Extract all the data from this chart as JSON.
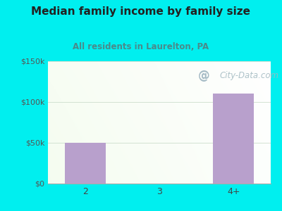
{
  "title": "Median family income by family size",
  "subtitle": "All residents in Laurelton, PA",
  "categories": [
    "2",
    "3",
    "4+"
  ],
  "values": [
    50000,
    0,
    110000
  ],
  "bar_color": "#b8a0cc",
  "ylim": [
    0,
    150000
  ],
  "yticks": [
    0,
    50000,
    100000,
    150000
  ],
  "ytick_labels": [
    "$0",
    "$50k",
    "$100k",
    "$150k"
  ],
  "bg_color": "#00efef",
  "title_color": "#222222",
  "subtitle_color": "#4a8a8a",
  "watermark": "City-Data.com",
  "grid_color": "#ccddcc",
  "axis_bottom_color": "#aaaaaa"
}
